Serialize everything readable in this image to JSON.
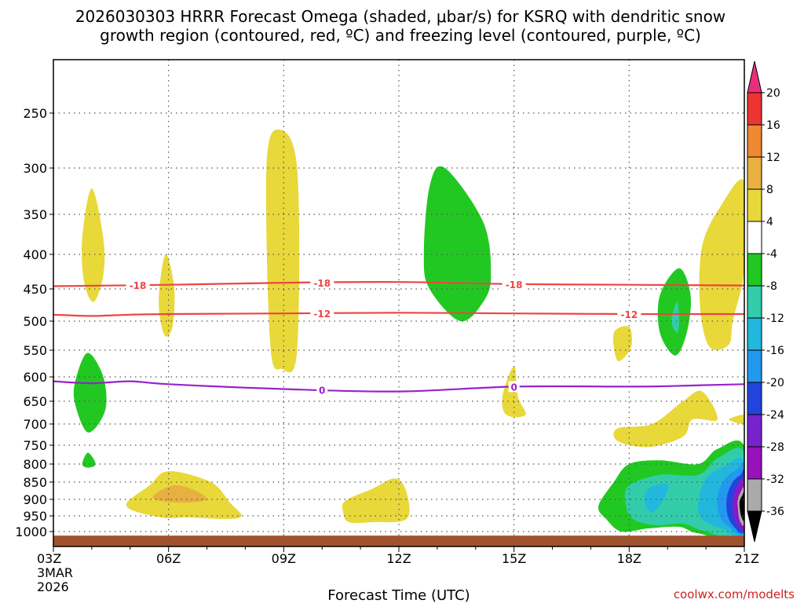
{
  "chart_data": {
    "type": "contour",
    "title_line1": "2026030303 HRRR Forecast Omega (shaded, μbar/s) for KSRQ with dendritic snow",
    "title_line2": "growth region (contoured, red, ºC) and freezing level (contoured, purple, ºC)",
    "xlabel": "Forecast Time (UTC)",
    "credit": "coolwx.com/modelts",
    "x_ticks": [
      "03Z",
      "06Z",
      "09Z",
      "12Z",
      "15Z",
      "18Z",
      "21Z"
    ],
    "x_hours": [
      0,
      3,
      6,
      9,
      12,
      15,
      18
    ],
    "x_date_line1": "3MAR",
    "x_date_line2": "2026",
    "y_ticks": [
      250,
      300,
      350,
      400,
      450,
      500,
      550,
      600,
      650,
      700,
      750,
      800,
      850,
      900,
      950,
      1000
    ],
    "y_tick_labels": [
      "250",
      "300",
      "350",
      "400",
      "450",
      "500",
      "550",
      "600",
      "650",
      "700",
      "750",
      "800",
      "850",
      "900",
      "950",
      "1000"
    ],
    "y_range_hpa": [
      200,
      1030
    ],
    "x_range_hours": [
      0,
      18
    ],
    "colorbar": {
      "labels": [
        "20",
        "16",
        "12",
        "8",
        "4",
        "-4",
        "-8",
        "-12",
        "-16",
        "-20",
        "-24",
        "-28",
        "-32",
        "-36"
      ],
      "colors": [
        "#e8307a",
        "#ee3333",
        "#ee8833",
        "#e8b040",
        "#e8d83a",
        "#ffffff",
        "#22c822",
        "#33ccaa",
        "#22b8dd",
        "#2299ee",
        "#2244dd",
        "#7722cc",
        "#9911bb",
        "#aaaaaa",
        "#000000"
      ]
    },
    "line_colors": {
      "dgz": "#ee4444",
      "freezing": "#9922cc",
      "ground": "#a0522d"
    },
    "isotherms": [
      {
        "name": "minus-18",
        "label": "-18",
        "color": "#ee4444",
        "points": [
          [
            0,
            446
          ],
          [
            3,
            444
          ],
          [
            6,
            441
          ],
          [
            9,
            440
          ],
          [
            12,
            443
          ],
          [
            15,
            444
          ],
          [
            18,
            445
          ]
        ],
        "label_hours": [
          2.2,
          7.0,
          12.0
        ]
      },
      {
        "name": "minus-12",
        "label": "-12",
        "color": "#ee4444",
        "points": [
          [
            0,
            490
          ],
          [
            1,
            492
          ],
          [
            2,
            490
          ],
          [
            3,
            489
          ],
          [
            6,
            488
          ],
          [
            9,
            487
          ],
          [
            12,
            488
          ],
          [
            15,
            489
          ],
          [
            18,
            489
          ]
        ],
        "label_hours": [
          7.0,
          15.0
        ]
      },
      {
        "name": "zero-freezing",
        "label": "0",
        "color": "#9922cc",
        "points": [
          [
            0,
            609
          ],
          [
            1,
            613
          ],
          [
            2,
            609
          ],
          [
            3,
            615
          ],
          [
            6,
            625
          ],
          [
            9,
            630
          ],
          [
            12,
            620
          ],
          [
            15,
            620
          ],
          [
            16,
            619
          ],
          [
            17,
            617
          ],
          [
            18,
            615
          ]
        ],
        "label_hours": [
          7.0,
          12.0
        ]
      }
    ],
    "omega_features": [
      {
        "name": "yellow-cell-1",
        "value": 4,
        "color": "#e8d83a",
        "pts": [
          [
            1.0,
            322
          ],
          [
            1.3,
            380
          ],
          [
            1.3,
            430
          ],
          [
            1.05,
            470
          ],
          [
            0.8,
            440
          ],
          [
            0.75,
            380
          ]
        ]
      },
      {
        "name": "yellow-cell-2",
        "value": 4,
        "color": "#e8d83a",
        "pts": [
          [
            2.95,
            400
          ],
          [
            3.15,
            450
          ],
          [
            3.1,
            510
          ],
          [
            2.9,
            525
          ],
          [
            2.75,
            480
          ],
          [
            2.8,
            430
          ]
        ]
      },
      {
        "name": "yellow-cell-3",
        "value": 4,
        "color": "#e8d83a",
        "pts": [
          [
            5.85,
            265
          ],
          [
            6.35,
            300
          ],
          [
            6.35,
            550
          ],
          [
            5.95,
            585
          ],
          [
            5.65,
            540
          ],
          [
            5.55,
            300
          ]
        ]
      },
      {
        "name": "yellow-cell-4",
        "value": 4,
        "color": "#e8d83a",
        "pts": [
          [
            12.0,
            580
          ],
          [
            12.1,
            640
          ],
          [
            12.3,
            680
          ],
          [
            11.8,
            680
          ],
          [
            11.7,
            640
          ]
        ]
      },
      {
        "name": "yellow-cell-5",
        "value": 4,
        "color": "#e8d83a",
        "pts": [
          [
            15.0,
            510
          ],
          [
            15.05,
            545
          ],
          [
            14.7,
            570
          ],
          [
            14.6,
            520
          ]
        ]
      },
      {
        "name": "yellow-cell-6",
        "value": 4,
        "color": "#e8d83a",
        "pts": [
          [
            18.0,
            315
          ],
          [
            18.0,
            420
          ],
          [
            17.7,
            500
          ],
          [
            17.6,
            540
          ],
          [
            17.1,
            545
          ],
          [
            16.85,
            480
          ],
          [
            16.9,
            390
          ],
          [
            17.4,
            340
          ]
        ]
      },
      {
        "name": "yellow-cell-7",
        "value": 4,
        "color": "#e8d83a",
        "pts": [
          [
            16.65,
            690
          ],
          [
            17.3,
            690
          ],
          [
            16.9,
            630
          ],
          [
            16.4,
            650
          ],
          [
            15.6,
            700
          ],
          [
            14.7,
            710
          ],
          [
            14.7,
            740
          ],
          [
            15.5,
            755
          ],
          [
            16.4,
            730
          ]
        ]
      },
      {
        "name": "yellow-cell-8",
        "value": 4,
        "color": "#e8d83a",
        "pts": [
          [
            18.0,
            680
          ],
          [
            17.6,
            690
          ],
          [
            18.0,
            700
          ]
        ]
      },
      {
        "name": "yellow-low-1",
        "value": 4,
        "color": "#e8d83a",
        "pts": [
          [
            1.9,
            920
          ],
          [
            2.5,
            860
          ],
          [
            3.0,
            820
          ],
          [
            4.1,
            850
          ],
          [
            4.6,
            910
          ],
          [
            4.9,
            950
          ],
          [
            4.5,
            960
          ],
          [
            3.5,
            955
          ],
          [
            2.8,
            955
          ]
        ]
      },
      {
        "name": "orange-low-1",
        "value": 8,
        "color": "#e8b040",
        "pts": [
          [
            2.6,
            890
          ],
          [
            3.1,
            860
          ],
          [
            3.6,
            870
          ],
          [
            4.0,
            900
          ],
          [
            3.4,
            910
          ],
          [
            2.8,
            905
          ]
        ]
      },
      {
        "name": "yellow-low-2",
        "value": 4,
        "color": "#e8d83a",
        "pts": [
          [
            7.6,
            905
          ],
          [
            8.3,
            870
          ],
          [
            8.9,
            840
          ],
          [
            9.2,
            880
          ],
          [
            9.2,
            960
          ],
          [
            8.3,
            970
          ],
          [
            7.7,
            970
          ],
          [
            7.55,
            940
          ]
        ]
      },
      {
        "name": "green-cell-1",
        "value": -8,
        "color": "#22c822",
        "pts": [
          [
            0.9,
            555
          ],
          [
            1.3,
            600
          ],
          [
            1.35,
            670
          ],
          [
            0.9,
            720
          ],
          [
            0.55,
            650
          ],
          [
            0.6,
            600
          ]
        ]
      },
      {
        "name": "green-cell-2",
        "value": -8,
        "color": "#22c822",
        "pts": [
          [
            0.9,
            770
          ],
          [
            1.1,
            800
          ],
          [
            0.9,
            810
          ],
          [
            0.75,
            800
          ]
        ]
      },
      {
        "name": "green-cell-3",
        "value": -8,
        "color": "#22c822",
        "pts": [
          [
            10.2,
            300
          ],
          [
            11.2,
            360
          ],
          [
            11.4,
            430
          ],
          [
            11.2,
            470
          ],
          [
            10.6,
            500
          ],
          [
            9.8,
            450
          ],
          [
            9.65,
            400
          ],
          [
            9.8,
            320
          ]
        ]
      },
      {
        "name": "green-cell-4",
        "value": -8,
        "color": "#22c822",
        "pts": [
          [
            16.3,
            420
          ],
          [
            16.6,
            460
          ],
          [
            16.5,
            520
          ],
          [
            16.2,
            560
          ],
          [
            15.8,
            520
          ],
          [
            15.8,
            460
          ]
        ]
      },
      {
        "name": "cyan-cell-4",
        "value": -12,
        "color": "#33ccaa",
        "pts": [
          [
            16.25,
            470
          ],
          [
            16.3,
            500
          ],
          [
            16.25,
            520
          ],
          [
            16.1,
            500
          ]
        ]
      },
      {
        "name": "green-low-big",
        "value": -8,
        "color": "#22c822",
        "pts": [
          [
            14.6,
            850
          ],
          [
            15.0,
            800
          ],
          [
            15.8,
            790
          ],
          [
            16.8,
            800
          ],
          [
            17.3,
            760
          ],
          [
            18.0,
            755
          ],
          [
            18.0,
            1012
          ],
          [
            16.8,
            1005
          ],
          [
            16.3,
            985
          ],
          [
            15.5,
            990
          ],
          [
            14.8,
            1000
          ],
          [
            14.4,
            960
          ],
          [
            14.2,
            920
          ]
        ]
      },
      {
        "name": "cyan-low",
        "value": -12,
        "color": "#33ccaa",
        "pts": [
          [
            15.0,
            860
          ],
          [
            15.8,
            830
          ],
          [
            16.8,
            830
          ],
          [
            17.3,
            785
          ],
          [
            18.0,
            770
          ],
          [
            18.0,
            1010
          ],
          [
            17.0,
            1000
          ],
          [
            16.4,
            975
          ],
          [
            15.7,
            980
          ],
          [
            15.1,
            960
          ],
          [
            14.9,
            910
          ]
        ]
      },
      {
        "name": "sky-low",
        "value": -16,
        "color": "#22b8dd",
        "pts": [
          [
            15.5,
            870
          ],
          [
            16.0,
            855
          ],
          [
            15.9,
            900
          ],
          [
            15.6,
            940
          ],
          [
            15.4,
            910
          ]
        ]
      },
      {
        "name": "sky-low-2",
        "value": -16,
        "color": "#22b8dd",
        "pts": [
          [
            17.0,
            840
          ],
          [
            17.5,
            805
          ],
          [
            18.0,
            795
          ],
          [
            18.0,
            1005
          ],
          [
            17.4,
            990
          ],
          [
            16.9,
            960
          ],
          [
            16.8,
            910
          ]
        ]
      },
      {
        "name": "blue-low",
        "value": -20,
        "color": "#2299ee",
        "pts": [
          [
            17.5,
            840
          ],
          [
            17.8,
            815
          ],
          [
            18.0,
            810
          ],
          [
            18.0,
            1000
          ],
          [
            17.6,
            985
          ],
          [
            17.35,
            950
          ],
          [
            17.3,
            890
          ]
        ]
      },
      {
        "name": "darkblue-low",
        "value": -24,
        "color": "#2244dd",
        "pts": [
          [
            17.7,
            850
          ],
          [
            17.9,
            830
          ],
          [
            18.0,
            825
          ],
          [
            18.0,
            995
          ],
          [
            17.7,
            980
          ],
          [
            17.55,
            940
          ],
          [
            17.55,
            890
          ]
        ]
      },
      {
        "name": "purple-low",
        "value": -28,
        "color": "#7722cc",
        "pts": [
          [
            17.82,
            860
          ],
          [
            18.0,
            845
          ],
          [
            18.0,
            990
          ],
          [
            17.8,
            975
          ],
          [
            17.7,
            940
          ],
          [
            17.7,
            895
          ]
        ]
      },
      {
        "name": "magenta-low",
        "value": -32,
        "color": "#9911bb",
        "pts": [
          [
            17.85,
            870
          ],
          [
            18.0,
            860
          ],
          [
            18.0,
            985
          ],
          [
            17.85,
            970
          ],
          [
            17.78,
            930
          ],
          [
            17.78,
            895
          ]
        ]
      },
      {
        "name": "gray-low",
        "value": -36,
        "color": "#aaaaaa",
        "pts": [
          [
            17.9,
            880
          ],
          [
            18.0,
            870
          ],
          [
            18.0,
            975
          ],
          [
            17.88,
            965
          ],
          [
            17.83,
            925
          ],
          [
            17.83,
            900
          ]
        ]
      },
      {
        "name": "black-low",
        "value": -40,
        "color": "#000000",
        "pts": [
          [
            17.95,
            888
          ],
          [
            18.0,
            882
          ],
          [
            18.0,
            962
          ],
          [
            17.92,
            952
          ],
          [
            17.88,
            925
          ],
          [
            17.88,
            905
          ]
        ]
      }
    ]
  }
}
